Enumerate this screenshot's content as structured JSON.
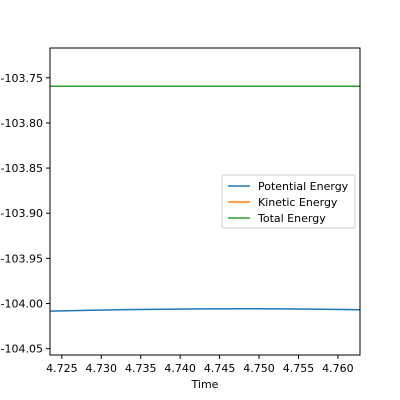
{
  "chart_data": {
    "type": "line",
    "title": "",
    "xlabel": "Time",
    "ylabel": "",
    "xlim": [
      4.7235,
      4.7628
    ],
    "ylim": [
      -104.057,
      -103.717
    ],
    "xticks": [
      4.725,
      4.73,
      4.735,
      4.74,
      4.745,
      4.75,
      4.755,
      4.76
    ],
    "xtick_labels": [
      "4.725",
      "4.730",
      "4.735",
      "4.740",
      "4.745",
      "4.750",
      "4.755",
      "4.760"
    ],
    "yticks": [
      -103.75,
      -103.8,
      -103.85,
      -103.9,
      -103.95,
      -104.0,
      -104.05
    ],
    "ytick_labels": [
      "-103.75",
      "-103.80",
      "-103.85",
      "-103.90",
      "-103.95",
      "-104.00",
      "-104.05"
    ],
    "grid": false,
    "legend_position": "right",
    "series": [
      {
        "name": "Potential Energy",
        "color": "#1f77b4",
        "x": [
          4.7235,
          4.728,
          4.733,
          4.738,
          4.743,
          4.748,
          4.753,
          4.758,
          4.7628
        ],
        "values": [
          -104.0084,
          -104.0076,
          -104.0068,
          -104.0063,
          -104.0059,
          -104.0058,
          -104.0059,
          -104.0063,
          -104.0069
        ]
      },
      {
        "name": "Kinetic Energy",
        "color": "#ff7f0e",
        "x": [
          4.7235,
          4.7628
        ],
        "values": [
          -103.7594,
          -103.7594
        ]
      },
      {
        "name": "Total Energy",
        "color": "#2ca02c",
        "x": [
          4.7235,
          4.7628
        ],
        "values": [
          -103.7594,
          -103.7594
        ]
      }
    ]
  }
}
